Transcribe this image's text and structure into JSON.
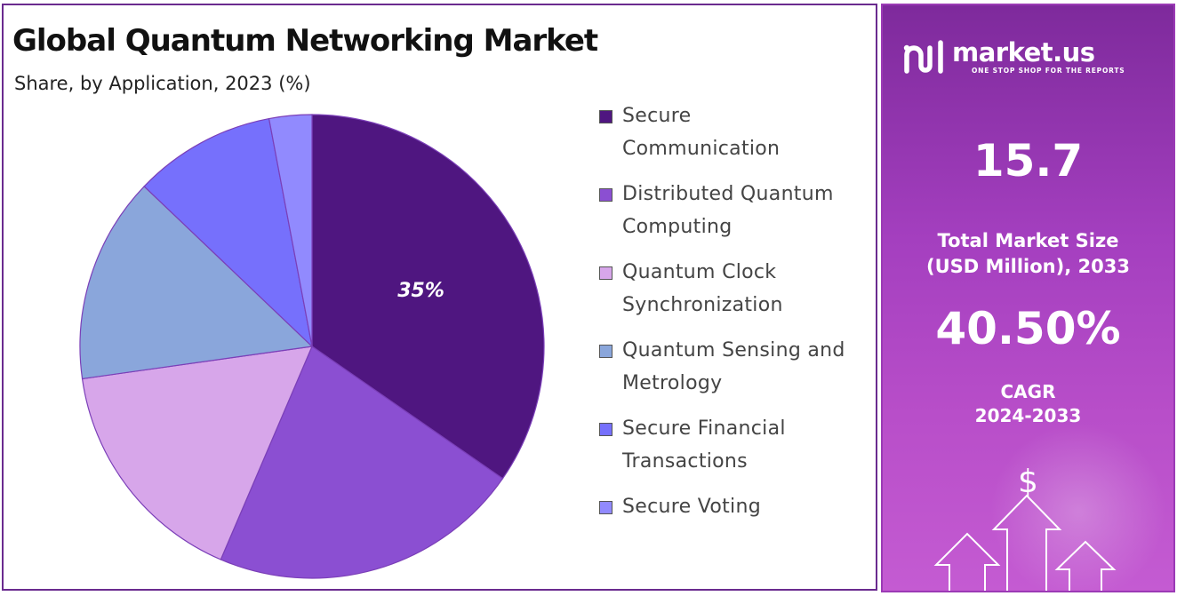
{
  "chart_data": {
    "type": "pie",
    "title": "Global Quantum Networking Market",
    "subtitle": "Share, by Application, 2023 (%)",
    "categories": [
      "Secure Communication",
      "Distributed Quantum Computing",
      "Quantum Clock Synchronization",
      "Quantum Sensing and Metrology",
      "Secure Financial Transactions",
      "Secure Voting"
    ],
    "values": [
      35,
      22,
      16.5,
      14.5,
      10,
      3
    ],
    "colors": [
      "#4f1680",
      "#8b4fd2",
      "#d7a6ea",
      "#8aa6db",
      "#7670fc",
      "#918afe"
    ],
    "data_labels": [
      {
        "category": "Secure Communication",
        "text": "35%"
      }
    ],
    "legend_position": "right"
  },
  "legend": {
    "items": [
      {
        "label_line1": "Secure",
        "label_line2": "Communication",
        "color": "#4f1680"
      },
      {
        "label_line1": "Distributed Quantum",
        "label_line2": "Computing",
        "color": "#8b4fd2"
      },
      {
        "label_line1": "Quantum Clock",
        "label_line2": "Synchronization",
        "color": "#d7a6ea"
      },
      {
        "label_line1": "Quantum Sensing and",
        "label_line2": "Metrology",
        "color": "#8aa6db"
      },
      {
        "label_line1": "Secure Financial",
        "label_line2": "Transactions",
        "color": "#7670fc"
      },
      {
        "label_line1": "Secure Voting",
        "label_line2": "",
        "color": "#918afe"
      }
    ]
  },
  "info_panel": {
    "brand_name": "market.us",
    "brand_tagline": "ONE STOP SHOP FOR THE REPORTS",
    "market_size_value": "15.7",
    "market_size_label_line1": "Total Market Size",
    "market_size_label_line2": "(USD Million), 2033",
    "cagr_value": "40.50%",
    "cagr_label_line1": "CAGR",
    "cagr_label_line2": "2024-2033",
    "dollar_symbol": "$",
    "icons": [
      "market-us-logo-icon",
      "dollar-sign-icon",
      "up-arrow-icon"
    ]
  }
}
